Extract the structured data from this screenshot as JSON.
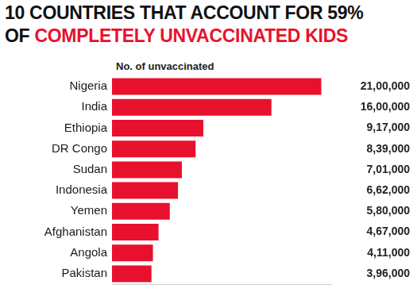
{
  "chart_data": {
    "type": "bar",
    "title": [
      "10 COUNTRIES THAT ACCOUNT FOR 59%",
      "OF COMPLETELY UNVACCINATED KIDS"
    ],
    "subtitle": "No. of unvaccinated",
    "orientation": "horizontal",
    "categories": [
      "Nigeria",
      "India",
      "Ethiopia",
      "DR Congo",
      "Sudan",
      "Indonesia",
      "Yemen",
      "Afghanistan",
      "Angola",
      "Pakistan"
    ],
    "values": [
      2100000,
      1600000,
      917000,
      839000,
      701000,
      662000,
      580000,
      467000,
      411000,
      396000
    ],
    "value_labels": [
      "21,00,000",
      "16,00,000",
      "9,17,000",
      "8,39,000",
      "7,01,000",
      "6,62,000",
      "5,80,000",
      "4,67,000",
      "4,11,000",
      "3,96,000"
    ],
    "color": "#e8112d",
    "xlim": [
      0,
      2200000
    ],
    "grid": false,
    "data_labels": true,
    "tick_labels": "y"
  }
}
